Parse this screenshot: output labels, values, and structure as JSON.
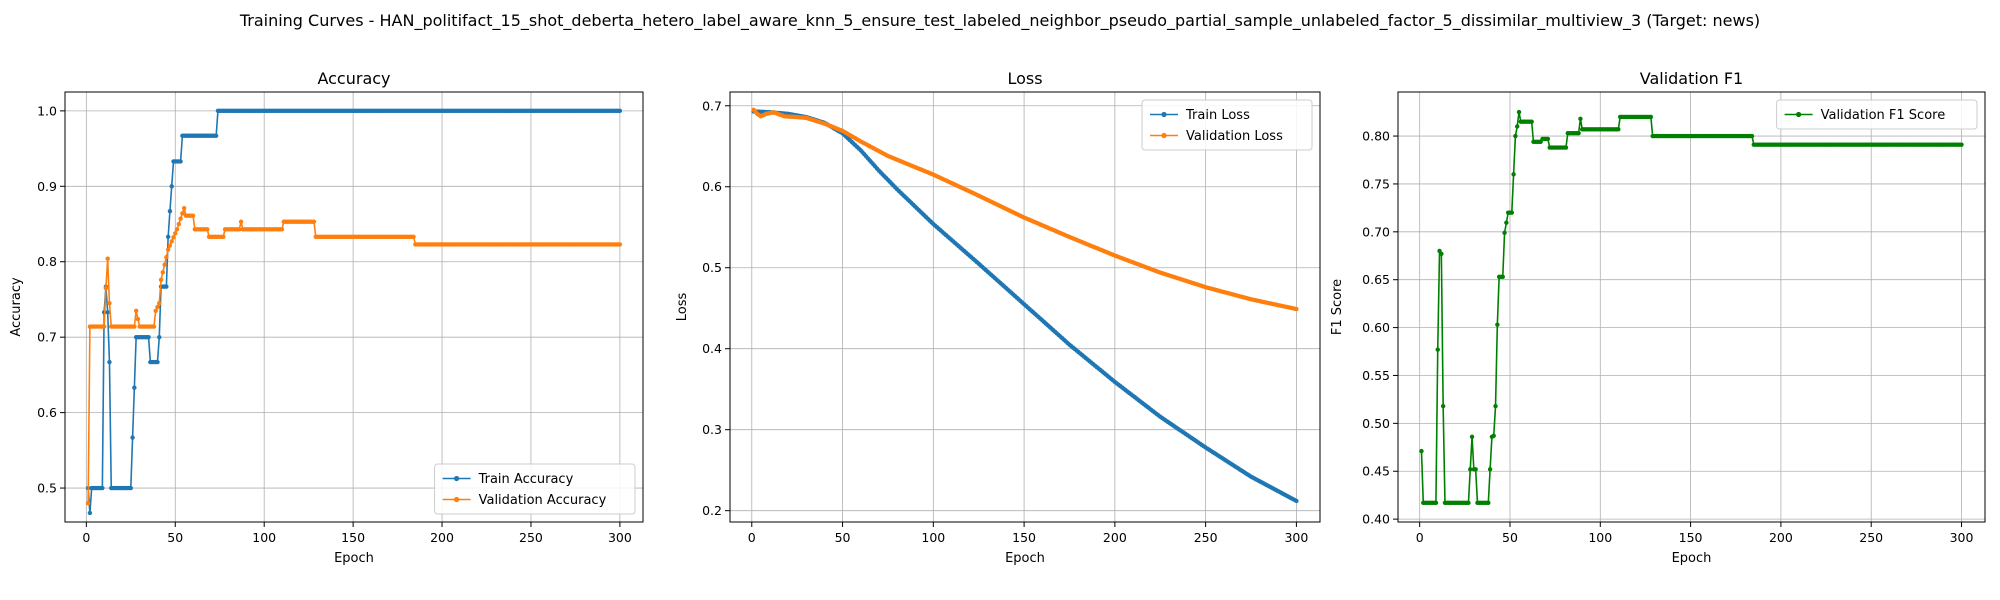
{
  "figure": {
    "suptitle": "Training Curves - HAN_politifact_15_shot_deberta_hetero_label_aware_knn_5_ensure_test_labeled_neighbor_pseudo_partial_sample_unlabeled_factor_5_dissimilar_multiview_3 (Target: news)"
  },
  "chart_data": [
    {
      "type": "line",
      "title": "Accuracy",
      "xlabel": "Epoch",
      "ylabel": "Accuracy",
      "xlim": [
        -12,
        313
      ],
      "ylim": [
        0.455,
        1.025
      ],
      "xticks": [
        0,
        50,
        100,
        150,
        200,
        250,
        300
      ],
      "xtick_labels": [
        "0",
        "50",
        "100",
        "150",
        "200",
        "250",
        "300"
      ],
      "yticks": [
        0.5,
        0.6,
        0.7,
        0.8,
        0.9,
        1.0
      ],
      "ytick_labels": [
        "0.5",
        "0.6",
        "0.7",
        "0.8",
        "0.9",
        "1.0"
      ],
      "grid": true,
      "legend_position": "lower-right",
      "series": [
        {
          "name": "Train Accuracy",
          "color": "#1f77b4",
          "points": [
            [
              1,
              0.5
            ],
            [
              2,
              0.467
            ],
            [
              3,
              0.5
            ],
            [
              9,
              0.5
            ],
            [
              10,
              0.733
            ],
            [
              11,
              0.767
            ],
            [
              12,
              0.733
            ],
            [
              13,
              0.667
            ],
            [
              14,
              0.5
            ],
            [
              25,
              0.5
            ],
            [
              26,
              0.567
            ],
            [
              27,
              0.633
            ],
            [
              28,
              0.7
            ],
            [
              35,
              0.7
            ],
            [
              36,
              0.667
            ],
            [
              40,
              0.667
            ],
            [
              41,
              0.7
            ],
            [
              42,
              0.767
            ],
            [
              45,
              0.767
            ],
            [
              46,
              0.833
            ],
            [
              47,
              0.867
            ],
            [
              48,
              0.9
            ],
            [
              49,
              0.933
            ],
            [
              53,
              0.933
            ],
            [
              54,
              0.967
            ],
            [
              73,
              0.967
            ],
            [
              74,
              1.0
            ],
            [
              300,
              1.0
            ]
          ]
        },
        {
          "name": "Validation Accuracy",
          "color": "#ff7f0e",
          "points": [
            [
              1,
              0.48
            ],
            [
              2,
              0.714
            ],
            [
              10,
              0.714
            ],
            [
              11,
              0.765
            ],
            [
              12,
              0.804
            ],
            [
              13,
              0.745
            ],
            [
              14,
              0.714
            ],
            [
              27,
              0.714
            ],
            [
              28,
              0.735
            ],
            [
              29,
              0.724
            ],
            [
              30,
              0.714
            ],
            [
              38,
              0.714
            ],
            [
              39,
              0.735
            ],
            [
              41,
              0.745
            ],
            [
              42,
              0.776
            ],
            [
              44,
              0.796
            ],
            [
              46,
              0.816
            ],
            [
              48,
              0.827
            ],
            [
              51,
              0.843
            ],
            [
              53,
              0.857
            ],
            [
              55,
              0.871
            ],
            [
              56,
              0.861
            ],
            [
              60,
              0.861
            ],
            [
              61,
              0.843
            ],
            [
              68,
              0.843
            ],
            [
              69,
              0.833
            ],
            [
              77,
              0.833
            ],
            [
              78,
              0.843
            ],
            [
              86,
              0.843
            ],
            [
              87,
              0.853
            ],
            [
              88,
              0.843
            ],
            [
              110,
              0.843
            ],
            [
              111,
              0.853
            ],
            [
              128,
              0.853
            ],
            [
              129,
              0.833
            ],
            [
              184,
              0.833
            ],
            [
              185,
              0.823
            ],
            [
              300,
              0.823
            ]
          ]
        }
      ]
    },
    {
      "type": "line",
      "title": "Loss",
      "xlabel": "Epoch",
      "ylabel": "Loss",
      "xlim": [
        -12,
        313
      ],
      "ylim": [
        0.186,
        0.717
      ],
      "xticks": [
        0,
        50,
        100,
        150,
        200,
        250,
        300
      ],
      "xtick_labels": [
        "0",
        "50",
        "100",
        "150",
        "200",
        "250",
        "300"
      ],
      "yticks": [
        0.2,
        0.3,
        0.4,
        0.5,
        0.6,
        0.7
      ],
      "ytick_labels": [
        "0.2",
        "0.3",
        "0.4",
        "0.5",
        "0.6",
        "0.7"
      ],
      "grid": true,
      "legend_position": "upper-right",
      "series": [
        {
          "name": "Train Loss",
          "color": "#1f77b4",
          "points": [
            [
              1,
              0.693
            ],
            [
              10,
              0.692
            ],
            [
              20,
              0.69
            ],
            [
              30,
              0.686
            ],
            [
              40,
              0.679
            ],
            [
              50,
              0.666
            ],
            [
              60,
              0.645
            ],
            [
              70,
              0.62
            ],
            [
              80,
              0.597
            ],
            [
              100,
              0.554
            ],
            [
              125,
              0.505
            ],
            [
              150,
              0.455
            ],
            [
              175,
              0.405
            ],
            [
              200,
              0.359
            ],
            [
              225,
              0.316
            ],
            [
              250,
              0.278
            ],
            [
              275,
              0.242
            ],
            [
              300,
              0.212
            ]
          ]
        },
        {
          "name": "Validation Loss",
          "color": "#ff7f0e",
          "points": [
            [
              1,
              0.695
            ],
            [
              3,
              0.69
            ],
            [
              5,
              0.687
            ],
            [
              8,
              0.69
            ],
            [
              12,
              0.692
            ],
            [
              18,
              0.687
            ],
            [
              25,
              0.686
            ],
            [
              30,
              0.685
            ],
            [
              40,
              0.678
            ],
            [
              50,
              0.669
            ],
            [
              60,
              0.656
            ],
            [
              75,
              0.638
            ],
            [
              100,
              0.615
            ],
            [
              125,
              0.589
            ],
            [
              150,
              0.562
            ],
            [
              175,
              0.538
            ],
            [
              200,
              0.515
            ],
            [
              225,
              0.494
            ],
            [
              250,
              0.476
            ],
            [
              275,
              0.461
            ],
            [
              300,
              0.449
            ]
          ]
        }
      ]
    },
    {
      "type": "line",
      "title": "Validation F1",
      "xlabel": "Epoch",
      "ylabel": "F1 Score",
      "xlim": [
        -12,
        313
      ],
      "ylim": [
        0.397,
        0.846
      ],
      "xticks": [
        0,
        50,
        100,
        150,
        200,
        250,
        300
      ],
      "xtick_labels": [
        "0",
        "50",
        "100",
        "150",
        "200",
        "250",
        "300"
      ],
      "yticks": [
        0.4,
        0.45,
        0.5,
        0.55,
        0.6,
        0.65,
        0.7,
        0.75,
        0.8
      ],
      "ytick_labels": [
        "0.40",
        "0.45",
        "0.50",
        "0.55",
        "0.60",
        "0.65",
        "0.70",
        "0.75",
        "0.80"
      ],
      "grid": true,
      "legend_position": "upper-right",
      "series": [
        {
          "name": "Validation F1 Score",
          "color": "#008000",
          "points": [
            [
              1,
              0.471
            ],
            [
              2,
              0.417
            ],
            [
              9,
              0.417
            ],
            [
              10,
              0.577
            ],
            [
              11,
              0.68
            ],
            [
              12,
              0.677
            ],
            [
              13,
              0.518
            ],
            [
              14,
              0.417
            ],
            [
              27,
              0.417
            ],
            [
              28,
              0.452
            ],
            [
              29,
              0.486
            ],
            [
              30,
              0.452
            ],
            [
              31,
              0.452
            ],
            [
              32,
              0.417
            ],
            [
              38,
              0.417
            ],
            [
              39,
              0.452
            ],
            [
              40,
              0.486
            ],
            [
              41,
              0.487
            ],
            [
              42,
              0.518
            ],
            [
              43,
              0.603
            ],
            [
              44,
              0.653
            ],
            [
              46,
              0.653
            ],
            [
              47,
              0.699
            ],
            [
              49,
              0.72
            ],
            [
              51,
              0.72
            ],
            [
              52,
              0.76
            ],
            [
              53,
              0.8
            ],
            [
              54,
              0.81
            ],
            [
              55,
              0.825
            ],
            [
              56,
              0.815
            ],
            [
              62,
              0.815
            ],
            [
              63,
              0.794
            ],
            [
              67,
              0.794
            ],
            [
              68,
              0.797
            ],
            [
              71,
              0.797
            ],
            [
              72,
              0.788
            ],
            [
              81,
              0.788
            ],
            [
              82,
              0.803
            ],
            [
              88,
              0.803
            ],
            [
              89,
              0.818
            ],
            [
              90,
              0.807
            ],
            [
              110,
              0.807
            ],
            [
              111,
              0.82
            ],
            [
              128,
              0.82
            ],
            [
              129,
              0.8
            ],
            [
              184,
              0.8
            ],
            [
              185,
              0.791
            ],
            [
              300,
              0.791
            ]
          ]
        }
      ]
    }
  ]
}
